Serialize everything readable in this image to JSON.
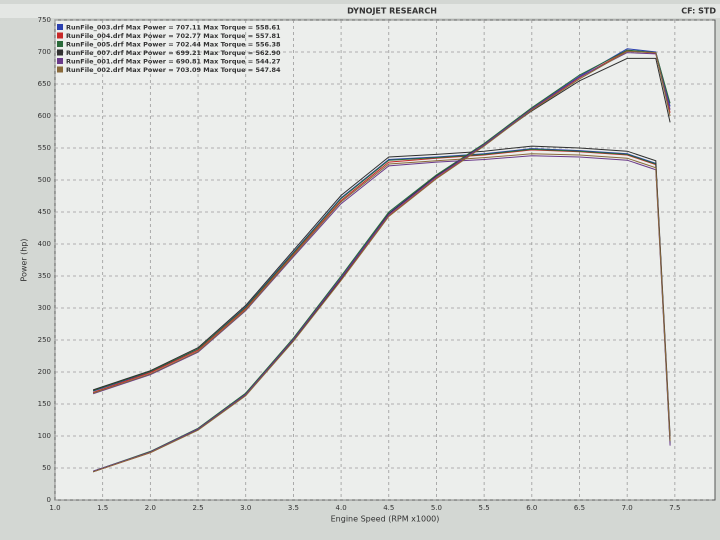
{
  "chart_data": {
    "type": "line",
    "title": "DYNOJET RESEARCH",
    "corner_note": "CF: STD",
    "x_label": "Engine Speed (RPM x1000)",
    "y_label": "Power (hp)",
    "x": [
      1.4,
      2.0,
      2.5,
      3.0,
      3.5,
      4.0,
      4.5,
      5.0,
      5.5,
      6.0,
      6.5,
      7.0,
      7.3,
      7.45
    ],
    "xlim": [
      1.0,
      7.9
    ],
    "xticks": [
      {
        "value": 1,
        "label": "1.0"
      },
      1.5,
      {
        "value": 2,
        "label": "2.0"
      },
      2.5,
      {
        "value": 3,
        "label": "3.0"
      },
      3.5,
      {
        "value": 4,
        "label": "4.0"
      },
      4.5,
      {
        "value": 5,
        "label": "5.0"
      },
      5.5,
      {
        "value": 6,
        "label": "6.0"
      },
      6.5,
      {
        "value": 7,
        "label": "7.0"
      },
      7.5
    ],
    "ylim": [
      0,
      750
    ],
    "yticks": [
      0,
      50,
      100,
      150,
      200,
      250,
      300,
      350,
      400,
      450,
      500,
      550,
      600,
      650,
      700,
      750
    ],
    "grid": true,
    "legend": "top-left",
    "series": [
      {
        "name": "RunFile_003.drf Max Power = 707.11 Max Torque = 558.61",
        "color": "#2a3fb0",
        "values": [
          45,
          75,
          111,
          166,
          252,
          348,
          448,
          507,
          556,
          612,
          662,
          705,
          700,
          615
        ],
        "torque": [
          170,
          200,
          236,
          302,
          387,
          472,
          532,
          536,
          541,
          549,
          546,
          541,
          526,
          90
        ]
      },
      {
        "name": "RunFile_004.drf Max Power = 702.77 Max Torque = 557.81",
        "color": "#c82828",
        "values": [
          44,
          74,
          110,
          164,
          249,
          344,
          444,
          503,
          554,
          610,
          660,
          702,
          698,
          605
        ],
        "torque": [
          168,
          199,
          234,
          299,
          384,
          468,
          528,
          534,
          539,
          547,
          544,
          539,
          524,
          95
        ]
      },
      {
        "name": "RunFile_005.drf Max Power = 702.44 Max Torque = 556.38",
        "color": "#2a6a3a",
        "values": [
          45,
          76,
          112,
          167,
          253,
          350,
          450,
          508,
          557,
          613,
          664,
          703,
          699,
          620
        ],
        "torque": [
          171,
          201,
          236,
          301,
          386,
          471,
          531,
          535,
          540,
          548,
          545,
          540,
          525,
          88
        ]
      },
      {
        "name": "RunFile_007.drf Max Power = 699.21 Max Torque = 562.90",
        "color": "#303030",
        "values": [
          44,
          75,
          110,
          165,
          250,
          346,
          447,
          506,
          555,
          608,
          655,
          690,
          690,
          590
        ],
        "torque": [
          172,
          202,
          238,
          304,
          390,
          476,
          536,
          540,
          545,
          553,
          550,
          545,
          530,
          100
        ]
      },
      {
        "name": "RunFile_001.drf Max Power = 690.81 Max Torque = 544.27",
        "color": "#6a3a8a",
        "values": [
          45,
          75,
          111,
          165,
          251,
          347,
          446,
          505,
          555,
          611,
          661,
          699,
          697,
          610
        ],
        "torque": [
          166,
          196,
          231,
          296,
          380,
          463,
          522,
          528,
          532,
          538,
          536,
          531,
          516,
          85
        ]
      },
      {
        "name": "RunFile_002.drf Max Power = 703.09 Max Torque = 547.84",
        "color": "#8a6a3a",
        "values": [
          44,
          74,
          109,
          163,
          248,
          343,
          443,
          502,
          553,
          609,
          658,
          701,
          699,
          600
        ],
        "torque": [
          167,
          197,
          232,
          297,
          382,
          466,
          525,
          530,
          535,
          541,
          539,
          534,
          519,
          92
        ]
      }
    ]
  }
}
